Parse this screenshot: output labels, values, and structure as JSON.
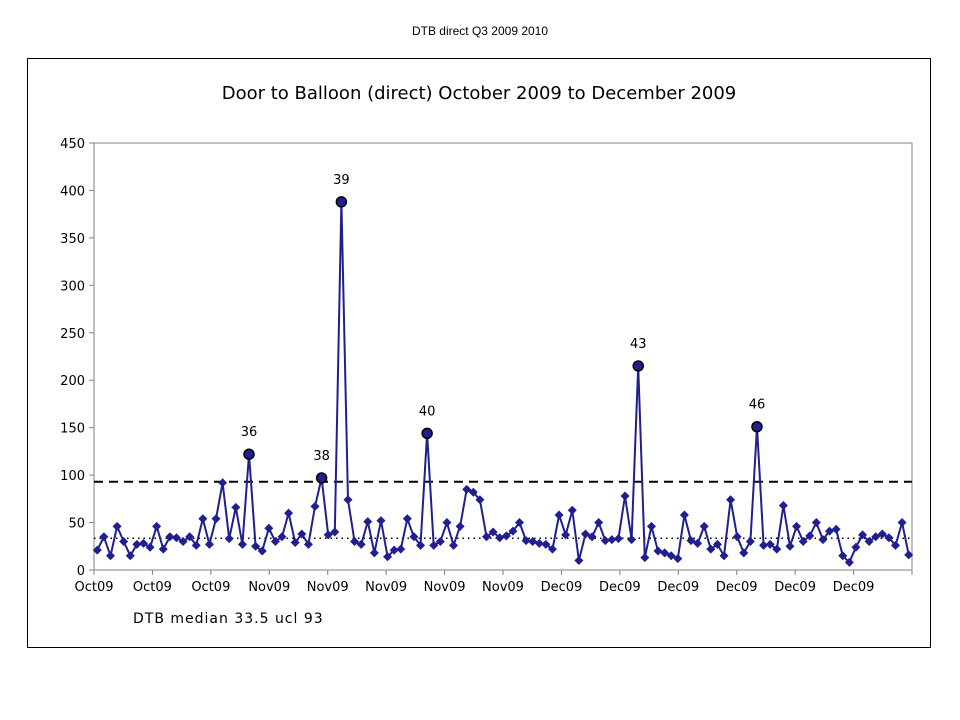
{
  "slide_title": "DTB direct Q3 2009 2010",
  "chart_data": {
    "type": "line",
    "title": "Door to Balloon (direct) October 2009 to December 2009",
    "xlabel": "DTB median 33.5 ucl 93",
    "ylabel": "",
    "ylim": [
      0,
      450
    ],
    "yticks": [
      0,
      50,
      100,
      150,
      200,
      250,
      300,
      350,
      400,
      450
    ],
    "xtick_labels": [
      "Oct09",
      "Oct09",
      "Oct09",
      "Nov09",
      "Nov09",
      "Nov09",
      "Nov09",
      "Nov09",
      "Dec09",
      "Dec09",
      "Dec09",
      "Dec09",
      "Dec09",
      "Dec09"
    ],
    "grid": false,
    "legend": "none",
    "series_color": "#1f1f8f",
    "reference_lines": [
      {
        "value": 93,
        "style": "dashed"
      },
      {
        "value": 33.5,
        "style": "dotted"
      }
    ],
    "values": [
      21,
      35,
      15,
      46,
      30,
      15,
      27,
      28,
      24,
      46,
      22,
      35,
      34,
      30,
      35,
      26,
      54,
      27,
      54,
      92,
      33,
      66,
      27,
      122,
      25,
      20,
      44,
      30,
      35,
      60,
      29,
      38,
      27,
      67,
      97,
      37,
      40,
      388,
      74,
      30,
      27,
      51,
      18,
      52,
      14,
      21,
      22,
      54,
      35,
      26,
      144,
      26,
      30,
      50,
      26,
      46,
      85,
      82,
      74,
      35,
      40,
      34,
      36,
      41,
      50,
      31,
      30,
      28,
      27,
      22,
      58,
      37,
      63,
      10,
      38,
      35,
      50,
      31,
      32,
      33,
      78,
      32,
      215,
      13,
      46,
      20,
      18,
      15,
      12,
      58,
      31,
      28,
      46,
      22,
      27,
      15,
      74,
      35,
      18,
      30,
      151,
      26,
      27,
      22,
      68,
      25,
      46,
      30,
      36,
      50,
      32,
      41,
      43,
      15,
      8,
      24,
      37,
      30,
      35,
      38,
      34,
      26,
      50,
      16
    ],
    "annotations": [
      {
        "index": 23,
        "label": "36"
      },
      {
        "index": 34,
        "label": "38"
      },
      {
        "index": 37,
        "label": "39"
      },
      {
        "index": 50,
        "label": "40"
      },
      {
        "index": 82,
        "label": "43"
      },
      {
        "index": 100,
        "label": "46"
      }
    ]
  }
}
